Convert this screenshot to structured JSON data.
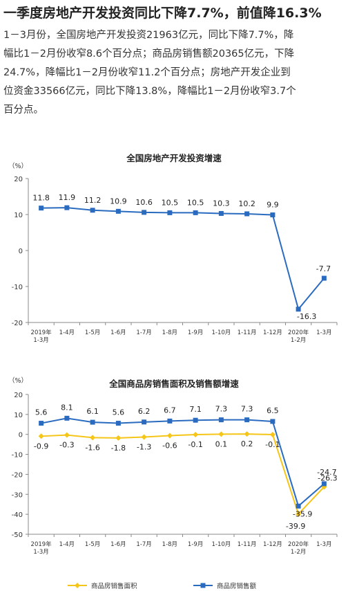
{
  "article": {
    "headline": "一季度房地产开发投资同比下降7.7%，前值降16.3%",
    "paragraph_lines": [
      "1－3月份，全国房地产开发投资21963亿元，同比下降7.7%，降",
      "幅比1－2月份收窄8.6个百分点；商品房销售额20365亿元，下降",
      "24.7%，降幅比1－2月份收窄11.2个百分点；房地产开发企业到",
      "位资金33566亿元，同比下降13.8%，降幅比1－2月份收窄3.7个",
      "百分点。"
    ]
  },
  "chart_data": [
    {
      "type": "line",
      "title": "全国房地产开发投资增速",
      "unit": "（%）",
      "categories": [
        [
          "2019年",
          "1-3月"
        ],
        [
          "1-4月"
        ],
        [
          "1-5月"
        ],
        [
          "1-6月"
        ],
        [
          "1-7月"
        ],
        [
          "1-8月"
        ],
        [
          "1-9月"
        ],
        [
          "1-10月"
        ],
        [
          "1-11月"
        ],
        [
          "1-12月"
        ],
        [
          "2020年",
          "1-2月"
        ],
        [
          "1-3月"
        ]
      ],
      "series": [
        {
          "values": [
            11.8,
            11.9,
            11.2,
            10.9,
            10.6,
            10.5,
            10.5,
            10.3,
            10.2,
            9.9,
            -16.3,
            -7.7
          ],
          "labels": [
            "11.8",
            "11.9",
            "11.2",
            "10.9",
            "10.6",
            "10.5",
            "10.5",
            "10.3",
            "10.2",
            "9.9",
            "-16.3",
            "-7.7"
          ],
          "color": "#2a6bc0"
        }
      ],
      "yticks": [
        -20,
        -10,
        0,
        10,
        20
      ],
      "ylim": [
        -20,
        20
      ],
      "grid": false,
      "legend": "none"
    },
    {
      "type": "line",
      "title": "全国商品房销售面积及销售额增速",
      "unit": "（%）",
      "categories": [
        [
          "2019年",
          "1-3月"
        ],
        [
          "1-4月"
        ],
        [
          "1-5月"
        ],
        [
          "1-6月"
        ],
        [
          "1-7月"
        ],
        [
          "1-8月"
        ],
        [
          "1-9月"
        ],
        [
          "1-10月"
        ],
        [
          "1-11月"
        ],
        [
          "1-12月"
        ],
        [
          "2020年",
          "1-2月"
        ],
        [
          "1-3月"
        ]
      ],
      "series": [
        {
          "name": "商品房销售面积",
          "values": [
            -0.9,
            -0.3,
            -1.6,
            -1.8,
            -1.3,
            -0.6,
            -0.1,
            0.1,
            0.2,
            -0.1,
            -39.9,
            -26.3
          ],
          "labels": [
            "-0.9",
            "-0.3",
            "-1.6",
            "-1.8",
            "-1.3",
            "-0.6",
            "-0.1",
            "0.1",
            "0.2",
            "-0.1",
            "-39.9",
            "-26.3"
          ],
          "color": "#f5c518"
        },
        {
          "name": "商品房销售额",
          "values": [
            5.6,
            8.1,
            6.1,
            5.6,
            6.2,
            6.7,
            7.1,
            7.3,
            7.3,
            6.5,
            -35.9,
            -24.7
          ],
          "labels": [
            "5.6",
            "8.1",
            "6.1",
            "5.6",
            "6.2",
            "6.7",
            "7.1",
            "7.3",
            "7.3",
            "6.5",
            "-35.9",
            "-24.7"
          ],
          "color": "#2a6bc0"
        }
      ],
      "yticks": [
        -50,
        -40,
        -30,
        -20,
        -10,
        0,
        10,
        20
      ],
      "ylim": [
        -50,
        20
      ],
      "grid": false,
      "legend": "bottom"
    }
  ]
}
